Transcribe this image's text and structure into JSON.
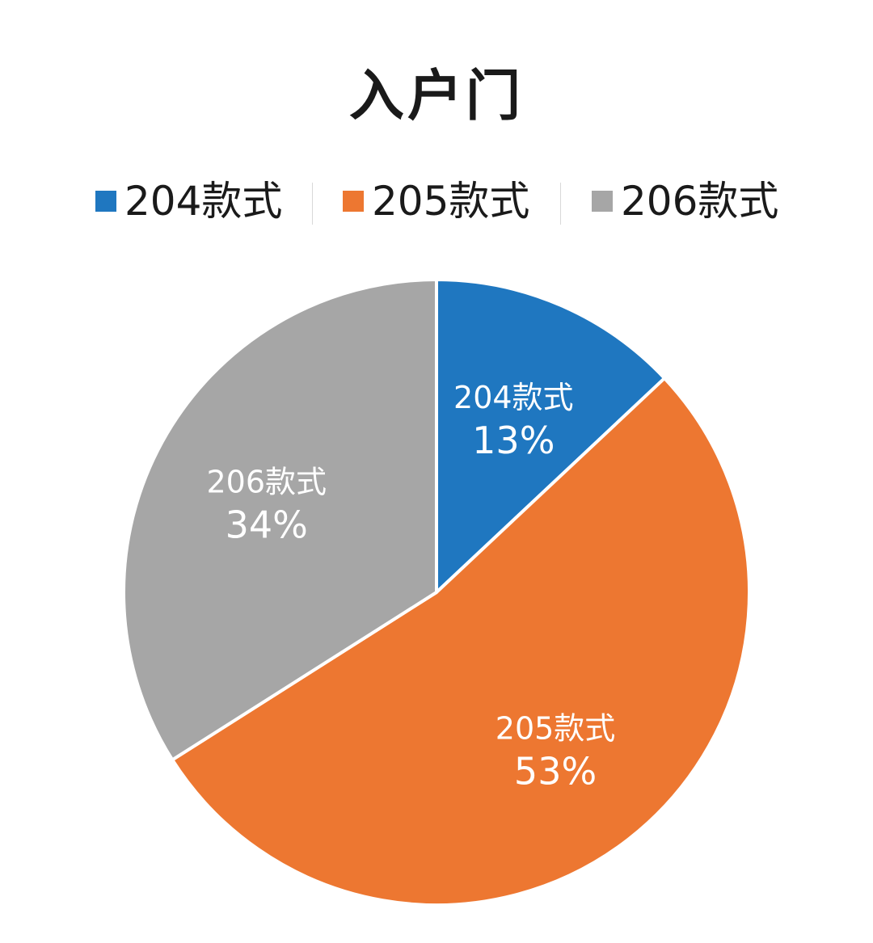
{
  "chart_data": {
    "type": "pie",
    "title": "入户门",
    "categories": [
      "204款式",
      "205款式",
      "206款式"
    ],
    "values": [
      13,
      53,
      34
    ],
    "value_unit": "%",
    "data_labels": [
      "13%",
      "53%",
      "34%"
    ],
    "colors": [
      "#1f77c0",
      "#ed7731",
      "#a6a6a6"
    ],
    "legend_position": "top",
    "start_angle_deg": 0,
    "direction": "clockwise"
  }
}
